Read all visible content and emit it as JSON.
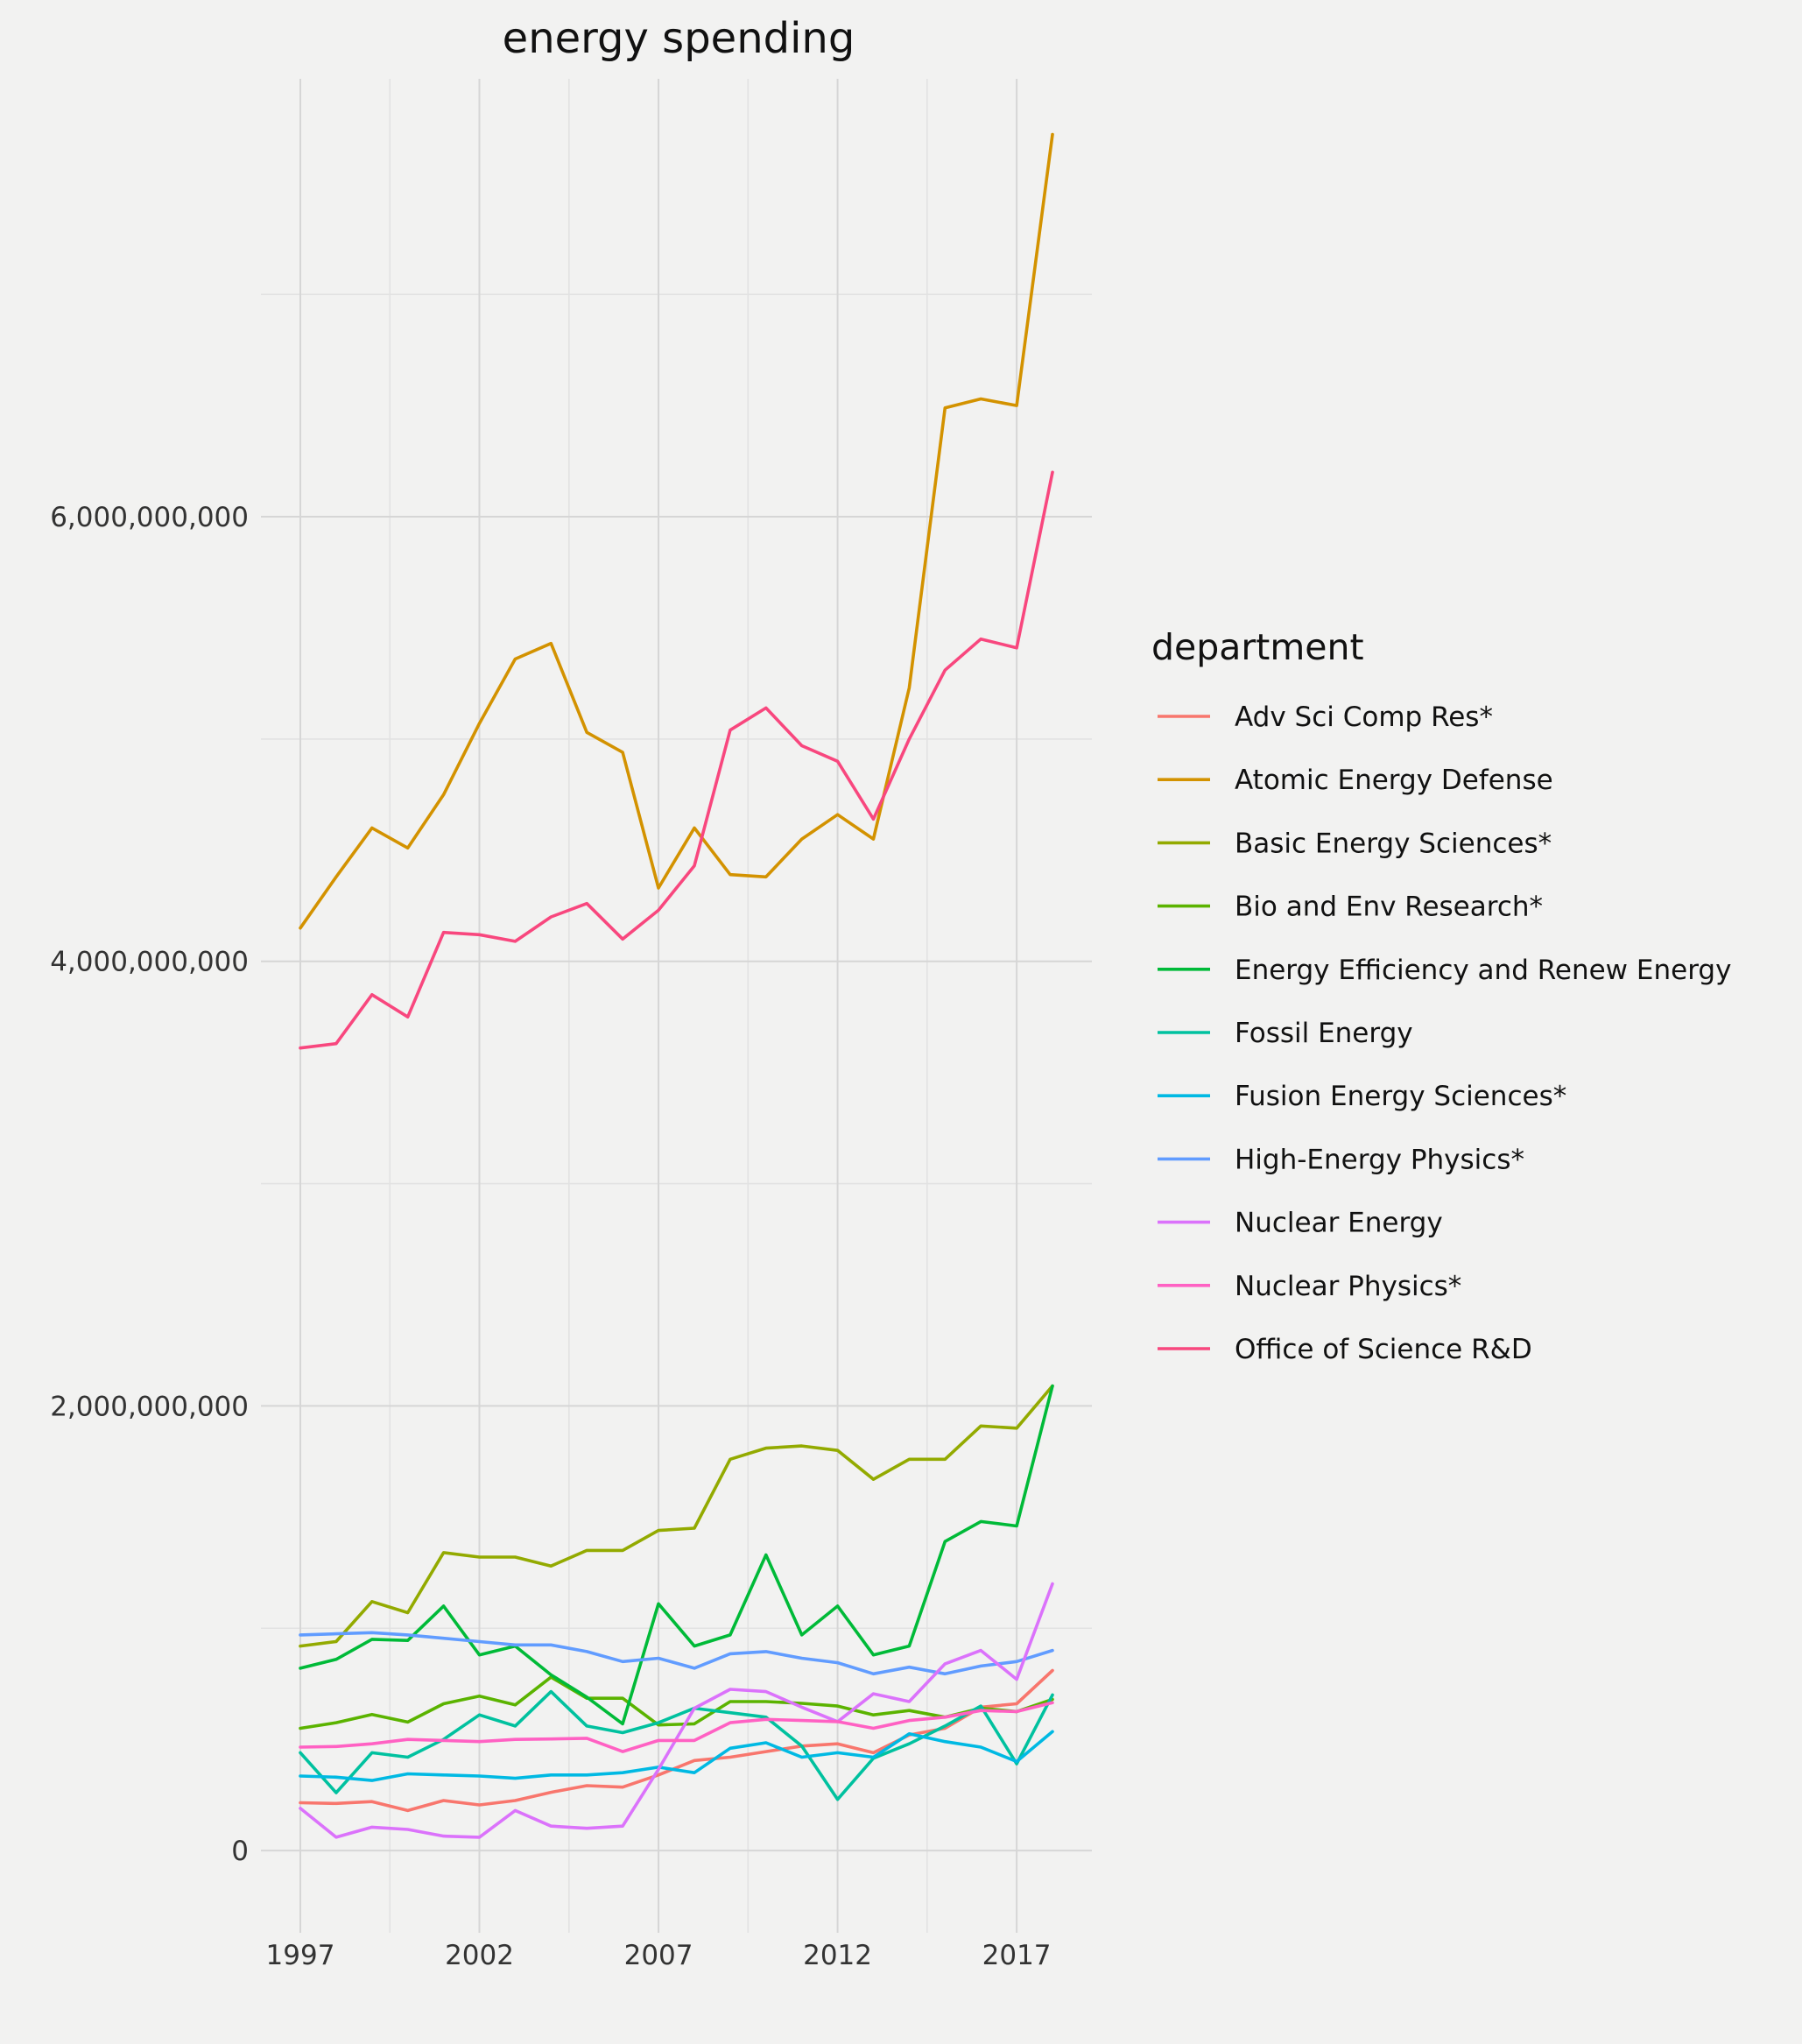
{
  "chart_data": {
    "type": "line",
    "title": "energy spending",
    "xlabel": "",
    "ylabel": "",
    "x": [
      1997,
      1998,
      1999,
      2000,
      2001,
      2002,
      2003,
      2004,
      2005,
      2006,
      2007,
      2008,
      2009,
      2010,
      2011,
      2012,
      2013,
      2014,
      2015,
      2016,
      2017,
      2018
    ],
    "x_ticks": [
      1997,
      2002,
      2007,
      2012,
      2017
    ],
    "x_tick_labels": [
      "1997",
      "2002",
      "2007",
      "2012",
      "2017"
    ],
    "x_minor_ticks": [
      1999.5,
      2004.5,
      2009.5,
      2014.5
    ],
    "xlim": [
      1995.9,
      2019.1
    ],
    "y_ticks": [
      0,
      2000000000,
      4000000000,
      6000000000
    ],
    "y_tick_labels": [
      "0",
      "2,000,000,000",
      "4,000,000,000",
      "6,000,000,000"
    ],
    "y_minor_ticks": [
      1000000000,
      3000000000,
      5000000000,
      7000000000
    ],
    "ylim": [
      -370000000,
      7970000000
    ],
    "grid": true,
    "legend": {
      "title": "department",
      "position": "right"
    },
    "series": [
      {
        "name": "Adv Sci Comp Res*",
        "color": "#F8766D",
        "values": [
          215000000,
          212000000,
          220000000,
          180000000,
          225000000,
          205000000,
          225000000,
          262000000,
          292000000,
          285000000,
          340000000,
          405000000,
          420000000,
          445000000,
          470000000,
          480000000,
          440000000,
          520000000,
          550000000,
          645000000,
          660000000,
          810000000
        ]
      },
      {
        "name": "Atomic Energy Defense",
        "color": "#D39200",
        "values": [
          4150000000,
          4380000000,
          4600000000,
          4510000000,
          4750000000,
          5070000000,
          5360000000,
          5430000000,
          5030000000,
          4940000000,
          4330000000,
          4600000000,
          4390000000,
          4380000000,
          4550000000,
          4660000000,
          4550000000,
          5230000000,
          6490000000,
          6530000000,
          6500000000,
          7720000000
        ]
      },
      {
        "name": "Basic Energy Sciences*",
        "color": "#93AA00",
        "values": [
          920000000,
          940000000,
          1120000000,
          1070000000,
          1340000000,
          1320000000,
          1320000000,
          1280000000,
          1350000000,
          1350000000,
          1440000000,
          1450000000,
          1760000000,
          1810000000,
          1820000000,
          1800000000,
          1670000000,
          1760000000,
          1760000000,
          1910000000,
          1900000000,
          2090000000
        ]
      },
      {
        "name": "Bio and Env Research*",
        "color": "#5BB300",
        "values": [
          550000000,
          575000000,
          612000000,
          578000000,
          660000000,
          695000000,
          655000000,
          780000000,
          685000000,
          685000000,
          565000000,
          570000000,
          670000000,
          670000000,
          662000000,
          650000000,
          610000000,
          630000000,
          600000000,
          640000000,
          625000000,
          680000000
        ]
      },
      {
        "name": "Energy Efficiency and Renew Energy",
        "color": "#00BA38",
        "values": [
          820000000,
          860000000,
          950000000,
          945000000,
          1100000000,
          880000000,
          920000000,
          790000000,
          690000000,
          570000000,
          1110000000,
          920000000,
          970000000,
          1330000000,
          970000000,
          1100000000,
          880000000,
          920000000,
          1390000000,
          1480000000,
          1460000000,
          2090000000
        ]
      },
      {
        "name": "Fossil Energy",
        "color": "#00C19F",
        "values": [
          440000000,
          260000000,
          440000000,
          420000000,
          500000000,
          610000000,
          560000000,
          715000000,
          560000000,
          530000000,
          575000000,
          640000000,
          620000000,
          600000000,
          470000000,
          230000000,
          415000000,
          480000000,
          560000000,
          650000000,
          390000000,
          700000000
        ]
      },
      {
        "name": "Fusion Energy Sciences*",
        "color": "#00B9E3",
        "values": [
          335000000,
          330000000,
          315000000,
          345000000,
          340000000,
          335000000,
          325000000,
          340000000,
          340000000,
          350000000,
          375000000,
          350000000,
          460000000,
          485000000,
          420000000,
          440000000,
          420000000,
          525000000,
          490000000,
          465000000,
          400000000,
          535000000
        ]
      },
      {
        "name": "High-Energy Physics*",
        "color": "#619CFF",
        "values": [
          970000000,
          975000000,
          980000000,
          970000000,
          955000000,
          940000000,
          925000000,
          925000000,
          895000000,
          850000000,
          865000000,
          820000000,
          885000000,
          895000000,
          865000000,
          845000000,
          795000000,
          825000000,
          795000000,
          830000000,
          850000000,
          900000000
        ]
      },
      {
        "name": "Nuclear Energy",
        "color": "#DB72FB",
        "values": [
          190000000,
          60000000,
          105000000,
          95000000,
          65000000,
          60000000,
          180000000,
          110000000,
          100000000,
          110000000,
          365000000,
          640000000,
          725000000,
          715000000,
          645000000,
          580000000,
          705000000,
          670000000,
          840000000,
          900000000,
          770000000,
          1200000000
        ]
      },
      {
        "name": "Nuclear Physics*",
        "color": "#FF61C3",
        "values": [
          465000000,
          468000000,
          480000000,
          500000000,
          495000000,
          490000000,
          500000000,
          502000000,
          505000000,
          445000000,
          495000000,
          495000000,
          575000000,
          590000000,
          585000000,
          580000000,
          550000000,
          585000000,
          600000000,
          630000000,
          625000000,
          665000000
        ]
      },
      {
        "name": "Office of Science R&D",
        "color": "#F8477E",
        "values": [
          3610000000,
          3630000000,
          3850000000,
          3750000000,
          4130000000,
          4120000000,
          4090000000,
          4200000000,
          4260000000,
          4100000000,
          4230000000,
          4430000000,
          5040000000,
          5140000000,
          4970000000,
          4900000000,
          4640000000,
          5000000000,
          5310000000,
          5450000000,
          5410000000,
          6200000000
        ]
      }
    ]
  }
}
